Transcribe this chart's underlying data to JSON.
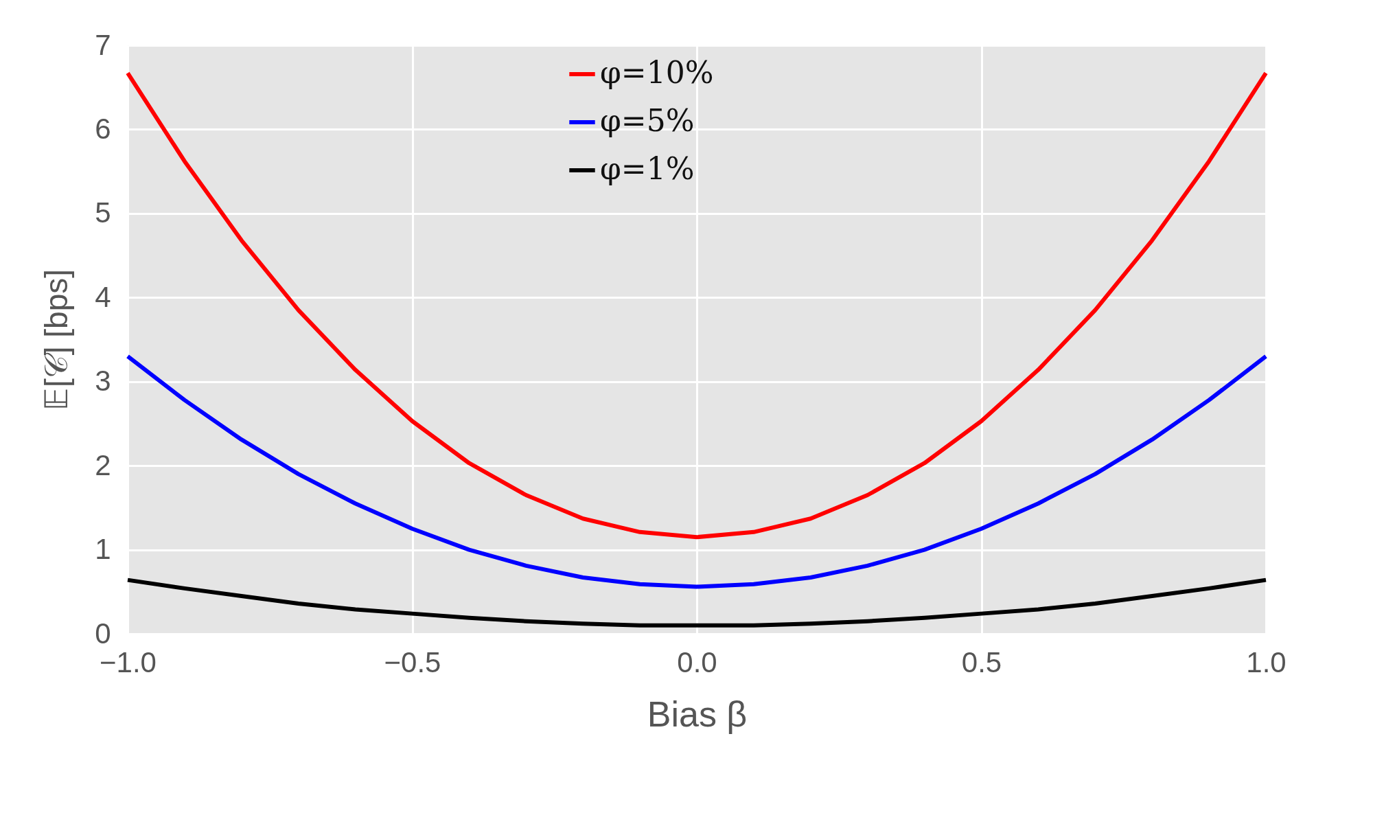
{
  "chart_data": {
    "type": "line",
    "xlabel": "Bias β",
    "ylabel": "𝔼[𝒞] [bps]",
    "x": [
      -1.0,
      -0.9,
      -0.8,
      -0.7,
      -0.6,
      -0.5,
      -0.4,
      -0.3,
      -0.2,
      -0.1,
      0.0,
      0.1,
      0.2,
      0.3,
      0.4,
      0.5,
      0.6,
      0.7,
      0.8,
      0.9,
      1.0
    ],
    "series": [
      {
        "name": "φ=10%",
        "color": "#ff0000",
        "values": [
          6.67,
          5.62,
          4.68,
          3.85,
          3.14,
          2.53,
          2.03,
          1.65,
          1.37,
          1.21,
          1.15,
          1.21,
          1.37,
          1.65,
          2.03,
          2.53,
          3.14,
          3.85,
          4.68,
          5.62,
          6.67
        ]
      },
      {
        "name": "φ=5%",
        "color": "#0000ff",
        "values": [
          3.3,
          2.78,
          2.31,
          1.9,
          1.55,
          1.25,
          1.0,
          0.81,
          0.67,
          0.59,
          0.56,
          0.59,
          0.67,
          0.81,
          1.0,
          1.25,
          1.55,
          1.9,
          2.31,
          2.78,
          3.3
        ]
      },
      {
        "name": "φ=1%",
        "color": "#000000",
        "values": [
          0.64,
          0.54,
          0.45,
          0.36,
          0.29,
          0.24,
          0.19,
          0.15,
          0.12,
          0.1,
          0.1,
          0.1,
          0.12,
          0.15,
          0.19,
          0.24,
          0.29,
          0.36,
          0.45,
          0.54,
          0.64
        ]
      }
    ],
    "xlim": [
      -1.0,
      1.0
    ],
    "xticks": [
      {
        "value": -1,
        "label": "−1.0"
      },
      {
        "value": -0.5,
        "label": "−0.5"
      },
      {
        "value": 0,
        "label": "0.0"
      },
      {
        "value": 0.5,
        "label": "0.5"
      },
      {
        "value": 1,
        "label": "1.0"
      }
    ],
    "ylim": [
      0,
      7
    ],
    "yticks": [
      0,
      1,
      2,
      3,
      4,
      5,
      6,
      7
    ],
    "grid": true,
    "legend": "top",
    "line_style": "solid",
    "marker": "none"
  }
}
